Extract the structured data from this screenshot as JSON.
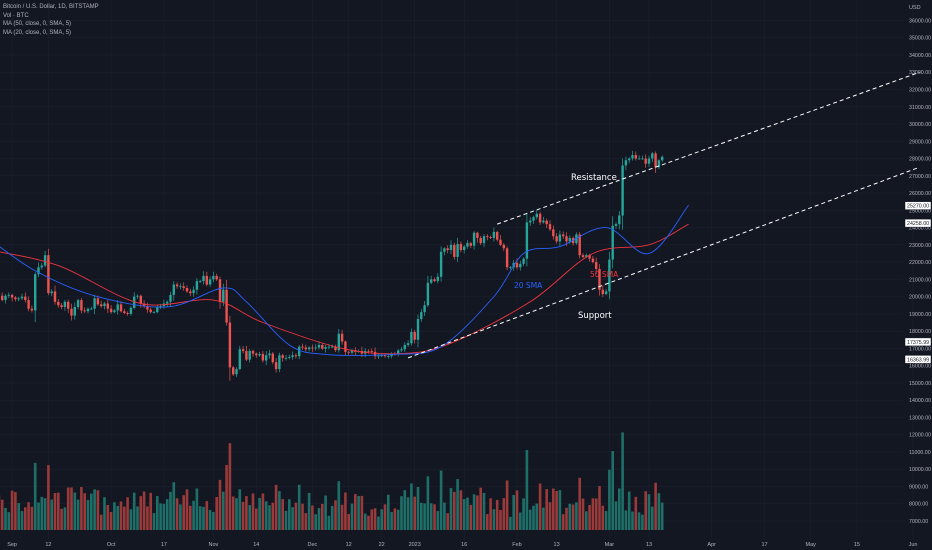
{
  "legend": {
    "symbol": "Bitcoin / U.S. Dollar, 1D, BITSTAMP",
    "volume": "Vol · BTC",
    "ma50": "MA (50, close, 0, SMA, 5)",
    "ma20": "MA (20, close, 0, SMA, 5)"
  },
  "currency": "USD",
  "colors": {
    "background": "#131722",
    "up": "#26a69a",
    "down": "#ef5350",
    "volume_up": "#1f6f69",
    "volume_down": "#9a3a3a",
    "sma20": "#2962ff",
    "sma50": "#f0353f",
    "trendline": "#ffffff",
    "axis_text": "#b2b5be"
  },
  "annotations": {
    "resistance": "Resistance",
    "support": "Support",
    "sma20": "20 SMA",
    "sma50": "50 SMA"
  },
  "chart_data": {
    "type": "candlestick",
    "title": "Bitcoin / U.S. Dollar, 1D, BITSTAMP",
    "y_unit": "USD",
    "ylim": [
      6000,
      37000
    ],
    "xlim": [
      "2022-08-25",
      "2023-06-03"
    ],
    "y_ticks": [
      7000,
      8000,
      9000,
      10000,
      11000,
      12000,
      13000,
      14000,
      15000,
      16000,
      17000,
      18000,
      19000,
      20000,
      21000,
      22000,
      23000,
      24000,
      25000,
      26000,
      27000,
      28000,
      29000,
      30000,
      31000,
      32000,
      33000,
      34000,
      35000,
      36000
    ],
    "x_ticks": [
      {
        "label": "Sep",
        "date": "2022-09-01"
      },
      {
        "label": "12",
        "date": "2022-09-12"
      },
      {
        "label": "Oct",
        "date": "2022-10-01"
      },
      {
        "label": "17",
        "date": "2022-10-17"
      },
      {
        "label": "Nov",
        "date": "2022-11-01"
      },
      {
        "label": "14",
        "date": "2022-11-14"
      },
      {
        "label": "Dec",
        "date": "2022-12-01"
      },
      {
        "label": "12",
        "date": "2022-12-12"
      },
      {
        "label": "22",
        "date": "2022-12-22"
      },
      {
        "label": "2023",
        "date": "2023-01-01"
      },
      {
        "label": "16",
        "date": "2023-01-16"
      },
      {
        "label": "Feb",
        "date": "2023-02-01"
      },
      {
        "label": "13",
        "date": "2023-02-13"
      },
      {
        "label": "Mar",
        "date": "2023-03-01"
      },
      {
        "label": "13",
        "date": "2023-03-13"
      },
      {
        "label": "Apr",
        "date": "2023-04-01"
      },
      {
        "label": "17",
        "date": "2023-04-17"
      },
      {
        "label": "May",
        "date": "2023-05-01"
      },
      {
        "label": "15",
        "date": "2023-05-15"
      },
      {
        "label": "Jun",
        "date": "2023-06-01"
      }
    ],
    "price_labels": [
      {
        "text": "25270.00",
        "value": 25270
      },
      {
        "text": "24258.00",
        "value": 24258
      },
      {
        "text": "17375.99",
        "value": 17376
      },
      {
        "text": "16363.99",
        "value": 16364
      }
    ],
    "first_date": "2022-08-25",
    "closes": [
      21550,
      21500,
      20200,
      20050,
      19800,
      20050,
      20100,
      19950,
      19850,
      19900,
      20000,
      19800,
      19300,
      19200,
      21300,
      21700,
      21800,
      22400,
      20200,
      20300,
      19700,
      19500,
      19400,
      19700,
      19300,
      18900,
      19400,
      19800,
      19200,
      19150,
      19300,
      19300,
      19900,
      19550,
      19450,
      19600,
      19300,
      19100,
      19200,
      19550,
      19150,
      19050,
      19000,
      19350,
      20000,
      20050,
      19600,
      19450,
      19250,
      19100,
      19100,
      19400,
      19450,
      19600,
      19700,
      20100,
      20700,
      20600,
      20600,
      20500,
      20300,
      20200,
      20400,
      20900,
      20900,
      21200,
      20700,
      21000,
      21200,
      21000,
      19700,
      20400,
      18500,
      15900,
      15500,
      15800,
      16950,
      16850,
      16350,
      16850,
      16700,
      16600,
      16680,
      16300,
      16600,
      16700,
      16200,
      15800,
      16600,
      16450,
      16450,
      16500,
      16600,
      16550,
      17100,
      17050,
      16950,
      17050,
      17000,
      17050,
      17200,
      16980,
      17080,
      17100,
      17100,
      16900,
      17850,
      17400,
      16800,
      16750,
      16900,
      16800,
      16850,
      16700,
      16850,
      16840,
      16800,
      16550,
      16580,
      16600,
      16550,
      16550,
      16700,
      16650,
      16880,
      16950,
      17200,
      17300,
      17950,
      17500,
      18700,
      19100,
      19500,
      20800,
      21000,
      20900,
      21150,
      22600,
      22800,
      22700,
      23000,
      22300,
      23050,
      22700,
      22900,
      23100,
      22950,
      23700,
      23400,
      23100,
      23500,
      23450,
      23400,
      23750,
      23300,
      23000,
      22800,
      21700,
      21700,
      21950,
      21700,
      21900,
      22200,
      24300,
      24400,
      24600,
      24800,
      24300,
      24400,
      24200,
      23900,
      23500,
      23200,
      23600,
      23500,
      23200,
      23400,
      23100,
      23600,
      22400,
      22300,
      22400,
      22200,
      22000,
      21600,
      20400,
      20150,
      20300,
      22150,
      24100,
      24200,
      24700,
      27600,
      27900,
      28000,
      28200,
      28000,
      28000,
      28000,
      27700,
      28000,
      28300,
      27500,
      27900,
      28100
    ],
    "sma20_close_anchors": [
      {
        "date": "2022-08-25",
        "value": 23350
      },
      {
        "date": "2022-09-08",
        "value": 21500
      },
      {
        "date": "2022-09-26",
        "value": 20050
      },
      {
        "date": "2022-10-18",
        "value": 19400
      },
      {
        "date": "2022-11-04",
        "value": 20500
      },
      {
        "date": "2022-11-11",
        "value": 19700
      },
      {
        "date": "2022-11-24",
        "value": 17200
      },
      {
        "date": "2022-12-05",
        "value": 16650
      },
      {
        "date": "2022-12-25",
        "value": 16650
      },
      {
        "date": "2023-01-09",
        "value": 17100
      },
      {
        "date": "2023-01-25",
        "value": 20000
      },
      {
        "date": "2023-02-03",
        "value": 22500
      },
      {
        "date": "2023-02-14",
        "value": 22900
      },
      {
        "date": "2023-02-28",
        "value": 24000
      },
      {
        "date": "2023-03-13",
        "value": 22500
      },
      {
        "date": "2023-03-25",
        "value": 25300
      }
    ],
    "sma50_close_anchors": [
      {
        "date": "2022-08-25",
        "value": 22700
      },
      {
        "date": "2022-09-15",
        "value": 21800
      },
      {
        "date": "2022-10-10",
        "value": 19600
      },
      {
        "date": "2022-11-01",
        "value": 19800
      },
      {
        "date": "2022-11-16",
        "value": 18500
      },
      {
        "date": "2022-12-10",
        "value": 17000
      },
      {
        "date": "2022-12-28",
        "value": 16700
      },
      {
        "date": "2023-01-12",
        "value": 17300
      },
      {
        "date": "2023-02-05",
        "value": 19700
      },
      {
        "date": "2023-02-24",
        "value": 22500
      },
      {
        "date": "2023-03-13",
        "value": 23000
      },
      {
        "date": "2023-03-25",
        "value": 24200
      }
    ],
    "trendlines": [
      {
        "name": "resistance",
        "points": [
          {
            "date": "2023-01-26",
            "value": 24200
          },
          {
            "date": "2023-06-03",
            "value": 33000
          }
        ]
      },
      {
        "name": "support",
        "points": [
          {
            "date": "2022-12-30",
            "value": 16450
          },
          {
            "date": "2023-06-03",
            "value": 27500
          }
        ]
      }
    ]
  }
}
